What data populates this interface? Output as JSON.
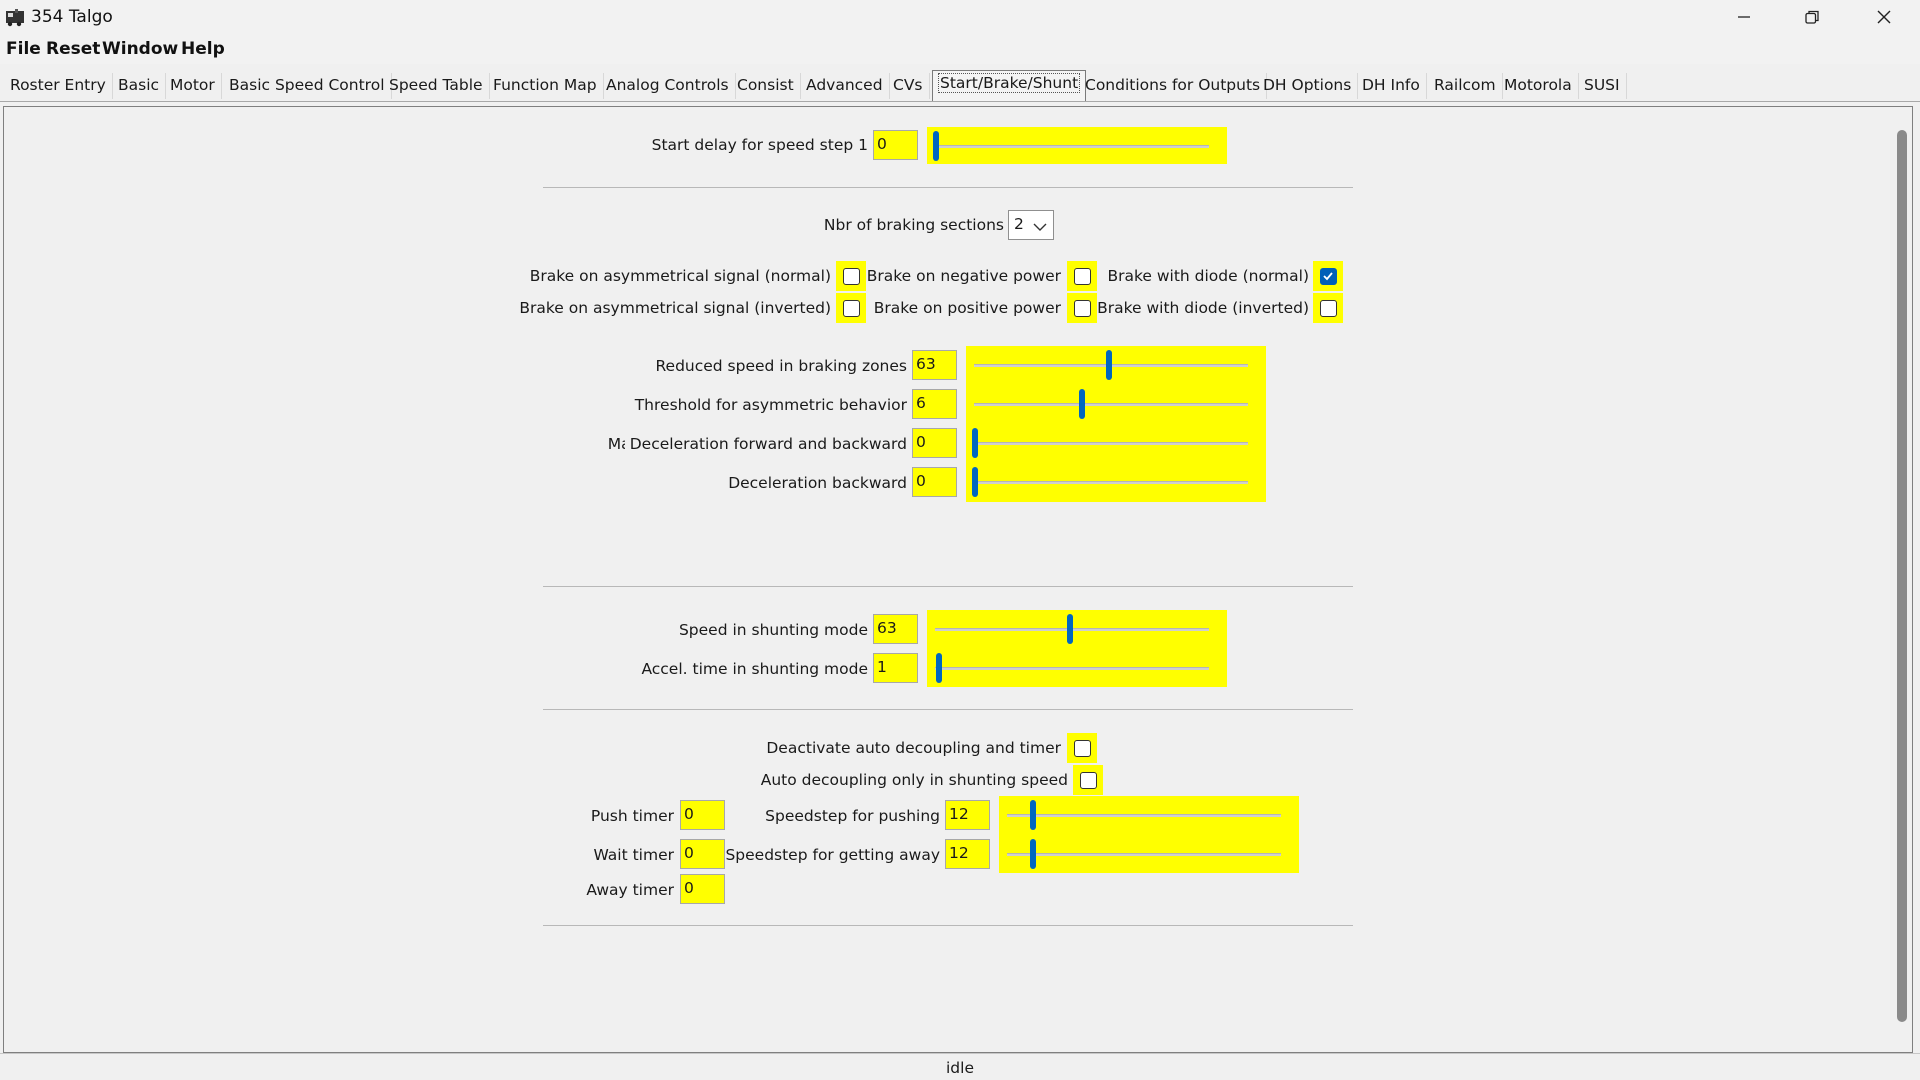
{
  "window": {
    "title": "354 Talgo"
  },
  "menu": [
    "File",
    "Reset",
    "Window",
    "Help"
  ],
  "tabs": [
    "Roster Entry",
    "Basic",
    "Motor",
    "Basic Speed Control",
    "Speed Table",
    "Function Map",
    "Analog Controls",
    "Consist",
    "Advanced",
    "CVs",
    "Start/Brake/Shunt",
    "Conditions for Outputs",
    "DH Options",
    "DH Info",
    "Railcom",
    "Motorola",
    "SUSI"
  ],
  "active_tab": "Start/Brake/Shunt",
  "start": {
    "label": "Start delay for speed step 1",
    "value": "0"
  },
  "braking": {
    "sections_label": "Nbr of braking sections",
    "sections_value": "2",
    "checkboxes": [
      {
        "label": "Brake on asymmetrical signal (normal)",
        "checked": false
      },
      {
        "label": "Brake on negative power",
        "checked": false
      },
      {
        "label": "Brake with diode (normal)",
        "checked": true
      },
      {
        "label": "Brake on asymmetrical signal (inverted)",
        "checked": false
      },
      {
        "label": "Brake on positive power",
        "checked": false
      },
      {
        "label": "Brake with diode (inverted)",
        "checked": false
      }
    ],
    "sliders": [
      {
        "label": "Reduced speed in braking zones",
        "value": "63",
        "fraction": 0.49
      },
      {
        "label": "Threshold for asymmetric behavior",
        "value": "6",
        "fraction": 0.39
      },
      {
        "label": "Deceleration forward and backward",
        "clipped_prefix": "Ma",
        "value": "0",
        "fraction": 0.0
      },
      {
        "label": "Deceleration backward",
        "value": "0",
        "fraction": 0.0
      }
    ]
  },
  "shunting": {
    "sliders": [
      {
        "label": "Speed in shunting mode",
        "value": "63",
        "fraction": 0.49
      },
      {
        "label": "Accel. time in shunting mode",
        "value": "1",
        "fraction": 0.01
      }
    ]
  },
  "decoupling": {
    "checkboxes": [
      {
        "label": "Deactivate auto decoupling and timer",
        "checked": false
      },
      {
        "label": "Auto decoupling only in shunting speed",
        "checked": false
      }
    ],
    "timers": [
      {
        "label": "Push timer",
        "value": "0"
      },
      {
        "label": "Wait timer",
        "value": "0"
      },
      {
        "label": "Away timer",
        "value": "0"
      }
    ],
    "sliders": [
      {
        "label": "Speedstep for pushing",
        "value": "12",
        "fraction": 0.09
      },
      {
        "label": "Speedstep for getting away",
        "value": "12",
        "fraction": 0.09
      }
    ]
  },
  "status": "idle",
  "colors": {
    "highlight": "#ffff00",
    "accent": "#0067c0"
  }
}
